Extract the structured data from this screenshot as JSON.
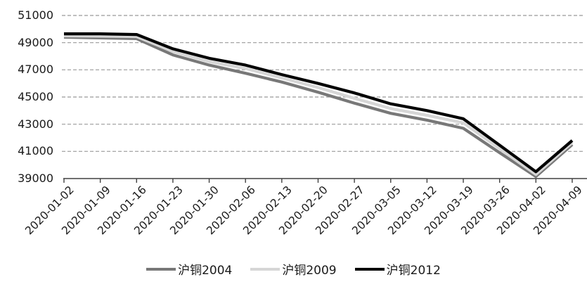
{
  "chart_data": {
    "type": "line",
    "title": "",
    "xlabel": "",
    "ylabel": "",
    "x": [
      "2020-01-02",
      "2020-01-09",
      "2020-01-16",
      "2020-01-23",
      "2020-01-30",
      "2020-02-06",
      "2020-02-13",
      "2020-02-20",
      "2020-02-27",
      "2020-03-05",
      "2020-03-12",
      "2020-03-19",
      "2020-03-26",
      "2020-04-02",
      "2020-04-09"
    ],
    "series": [
      {
        "name": "沪铜2004",
        "color": "#787878",
        "values": [
          49400,
          49350,
          49300,
          48100,
          47350,
          46750,
          46100,
          45350,
          44550,
          43800,
          43300,
          42700,
          40900,
          39150,
          41500
        ]
      },
      {
        "name": "沪铜2009",
        "color": "#d6d6d6",
        "values": [
          49500,
          49480,
          49450,
          48350,
          47600,
          47100,
          46400,
          45700,
          44900,
          44150,
          43650,
          43100,
          41200,
          39300,
          41650
        ]
      },
      {
        "name": "沪铜2012",
        "color": "#000000",
        "values": [
          49650,
          49650,
          49600,
          48550,
          47850,
          47350,
          46650,
          46000,
          45300,
          44500,
          44000,
          43400,
          41450,
          39500,
          41800
        ]
      }
    ],
    "ylim": [
      39000,
      51000
    ],
    "y_ticks": [
      51000,
      49000,
      47000,
      45000,
      43000,
      41000,
      39000
    ],
    "grid": "horizontal-dashed",
    "legend_position": "bottom",
    "colors": {
      "gridline": "#999999",
      "axis": "#404040",
      "tick_text": "#1a1a1a",
      "background": "#ffffff"
    }
  }
}
